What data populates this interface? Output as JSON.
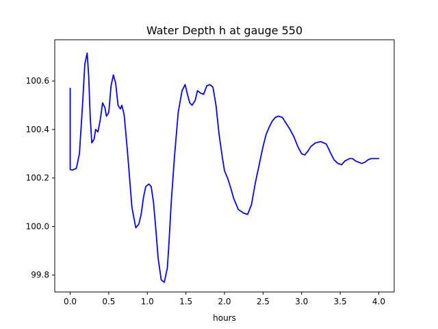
{
  "chart_data": {
    "type": "line",
    "title": "Water Depth h at gauge 550",
    "xlabel": "hours",
    "ylabel": "",
    "xlim": [
      -0.2,
      4.2
    ],
    "ylim": [
      99.73,
      100.77
    ],
    "xticks": [
      0.0,
      0.5,
      1.0,
      1.5,
      2.0,
      2.5,
      3.0,
      3.5,
      4.0
    ],
    "xtick_labels": [
      "0.0",
      "0.5",
      "1.0",
      "1.5",
      "2.0",
      "2.5",
      "3.0",
      "3.5",
      "4.0"
    ],
    "yticks": [
      99.8,
      100.0,
      100.2,
      100.4,
      100.6
    ],
    "ytick_labels": [
      "99.8",
      "100.0",
      "100.2",
      "100.4",
      "100.6"
    ],
    "grid": false,
    "series": [
      {
        "color": "#0000ff",
        "x": [
          0.0,
          0.0,
          0.03,
          0.08,
          0.12,
          0.16,
          0.19,
          0.22,
          0.24,
          0.26,
          0.28,
          0.31,
          0.33,
          0.36,
          0.39,
          0.42,
          0.45,
          0.47,
          0.5,
          0.53,
          0.56,
          0.59,
          0.62,
          0.65,
          0.67,
          0.7,
          0.72,
          0.75,
          0.8,
          0.85,
          0.89,
          0.92,
          0.95,
          0.98,
          1.02,
          1.05,
          1.08,
          1.11,
          1.14,
          1.18,
          1.22,
          1.26,
          1.28,
          1.31,
          1.35,
          1.4,
          1.45,
          1.49,
          1.52,
          1.55,
          1.58,
          1.62,
          1.65,
          1.69,
          1.73,
          1.77,
          1.81,
          1.85,
          1.89,
          1.93,
          1.97,
          2.0,
          2.04,
          2.08,
          2.12,
          2.18,
          2.25,
          2.3,
          2.35,
          2.4,
          2.44,
          2.5,
          2.54,
          2.58,
          2.62,
          2.66,
          2.7,
          2.75,
          2.8,
          2.85,
          2.9,
          2.95,
          3.0,
          3.04,
          3.08,
          3.12,
          3.18,
          3.25,
          3.32,
          3.38,
          3.42,
          3.47,
          3.52,
          3.56,
          3.62,
          3.66,
          3.7,
          3.74,
          3.78,
          3.82,
          3.86,
          3.9,
          3.95,
          4.0
        ],
        "y": [
          100.57,
          100.235,
          100.233,
          100.24,
          100.3,
          100.5,
          100.67,
          100.715,
          100.62,
          100.45,
          100.345,
          100.36,
          100.4,
          100.39,
          100.44,
          100.51,
          100.49,
          100.455,
          100.47,
          100.58,
          100.625,
          100.59,
          100.5,
          100.485,
          100.5,
          100.46,
          100.39,
          100.28,
          100.08,
          99.995,
          100.01,
          100.05,
          100.12,
          100.165,
          100.175,
          100.165,
          100.1,
          99.99,
          99.87,
          99.78,
          99.77,
          99.83,
          99.93,
          100.1,
          100.28,
          100.47,
          100.56,
          100.585,
          100.545,
          100.51,
          100.5,
          100.52,
          100.56,
          100.55,
          100.545,
          100.58,
          100.585,
          100.575,
          100.5,
          100.38,
          100.29,
          100.23,
          100.2,
          100.16,
          100.115,
          100.07,
          100.055,
          100.05,
          100.09,
          100.18,
          100.24,
          100.33,
          100.38,
          100.41,
          100.435,
          100.45,
          100.455,
          100.45,
          100.425,
          100.4,
          100.37,
          100.33,
          100.3,
          100.295,
          100.31,
          100.33,
          100.345,
          100.35,
          100.34,
          100.3,
          100.275,
          100.26,
          100.255,
          100.27,
          100.28,
          100.28,
          100.27,
          100.265,
          100.26,
          100.265,
          100.275,
          100.28,
          100.28,
          100.28
        ]
      }
    ]
  }
}
